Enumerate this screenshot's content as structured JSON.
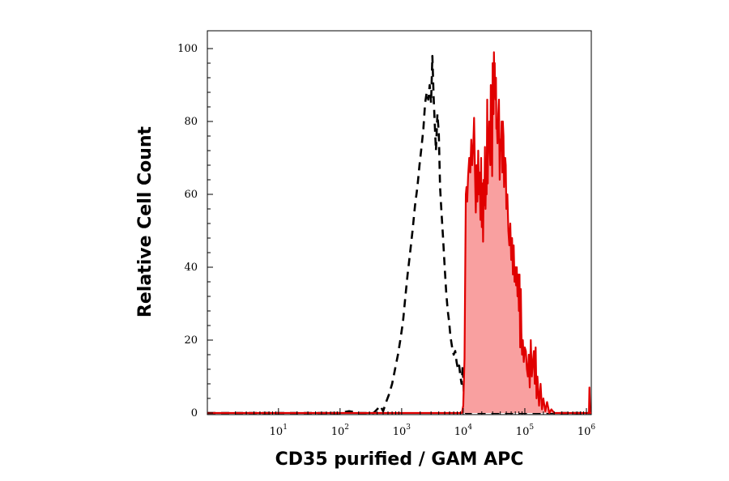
{
  "chart_data": {
    "type": "area",
    "title": "",
    "xlabel": "CD35 purified / GAM APC",
    "ylabel": "Relative Cell Count",
    "x_scale": "log",
    "xlim": [
      0.7,
      1200000
    ],
    "ylim": [
      0,
      100
    ],
    "grid": false,
    "legend": "none",
    "x_ticks": [
      {
        "base": "10",
        "exp": "1",
        "value": 10
      },
      {
        "base": "10",
        "exp": "2",
        "value": 100
      },
      {
        "base": "10",
        "exp": "3",
        "value": 1000
      },
      {
        "base": "10",
        "exp": "4",
        "value": 10000
      },
      {
        "base": "10",
        "exp": "5",
        "value": 100000
      },
      {
        "base": "10",
        "exp": "6",
        "value": 1000000
      }
    ],
    "y_ticks": [
      "0",
      "20",
      "40",
      "60",
      "80",
      "100"
    ],
    "series": [
      {
        "style": "dashed",
        "color": "#000000",
        "fill": "none",
        "x": [
          0.7,
          100,
          140,
          200,
          350,
          400,
          450,
          500,
          560,
          620,
          700,
          780,
          870,
          950,
          1050,
          1150,
          1250,
          1350,
          1500,
          1650,
          1800,
          1950,
          2100,
          2250,
          2400,
          2550,
          2700,
          2850,
          3000,
          3150,
          3300,
          3450,
          3600,
          3800,
          4000,
          4200,
          4400,
          4700,
          5000,
          5300,
          5600,
          5900,
          6200,
          6600,
          7000,
          7400,
          7800,
          8200,
          8600,
          9000,
          9400,
          9800,
          10200,
          10600,
          11000,
          12000,
          1200000
        ],
        "values": [
          0,
          0,
          0.5,
          0,
          0,
          1,
          2,
          0.5,
          3,
          5,
          8,
          12,
          16,
          20,
          25,
          32,
          38,
          43,
          50,
          57,
          62,
          68,
          73,
          78,
          85,
          88,
          86,
          90,
          85,
          98,
          87,
          79,
          72,
          82,
          77,
          62,
          56,
          48,
          40,
          33,
          28,
          25,
          21,
          18,
          16,
          17,
          14,
          12,
          13,
          10,
          8,
          13,
          6,
          4,
          0,
          0,
          0
        ]
      },
      {
        "style": "solid",
        "color": "#e00000",
        "fill": "#f9a0a0",
        "x": [
          0.7,
          9500,
          10000,
          10500,
          11000,
          11300,
          11600,
          12000,
          12500,
          13000,
          13500,
          14000,
          14500,
          15000,
          15500,
          16000,
          16500,
          17000,
          17500,
          18000,
          18500,
          19000,
          19500,
          20000,
          20500,
          21000,
          21500,
          22000,
          22500,
          23000,
          23500,
          24000,
          24500,
          25000,
          25500,
          26000,
          26500,
          27000,
          27500,
          28000,
          28500,
          29000,
          29500,
          30000,
          30500,
          31000,
          31500,
          32000,
          32500,
          33000,
          33500,
          34000,
          34500,
          35000,
          36000,
          37000,
          38000,
          39000,
          40000,
          41000,
          42000,
          43000,
          44000,
          45000,
          46000,
          47000,
          48000,
          49000,
          50000,
          52000,
          54000,
          56000,
          58000,
          60000,
          62000,
          64000,
          66000,
          68000,
          70000,
          72000,
          74000,
          76000,
          78000,
          80000,
          82000,
          84000,
          86000,
          88000,
          90000,
          93000,
          96000,
          100000,
          104000,
          108000,
          112000,
          116000,
          120000,
          125000,
          130000,
          135000,
          140000,
          145000,
          150000,
          155000,
          160000,
          170000,
          180000,
          190000,
          200000,
          215000,
          230000,
          250000,
          270000,
          300000,
          1000000,
          1100000,
          1120000,
          1150000,
          1200000
        ],
        "values": [
          0,
          0,
          2,
          15,
          60,
          62,
          58,
          65,
          70,
          66,
          75,
          68,
          73,
          81,
          66,
          55,
          68,
          58,
          72,
          60,
          66,
          53,
          70,
          51,
          63,
          47,
          64,
          57,
          73,
          56,
          66,
          60,
          86,
          63,
          78,
          73,
          80,
          72,
          68,
          90,
          78,
          89,
          65,
          96,
          84,
          82,
          99,
          92,
          96,
          88,
          86,
          92,
          78,
          80,
          74,
          82,
          86,
          64,
          75,
          72,
          80,
          66,
          80,
          76,
          62,
          70,
          70,
          68,
          56,
          60,
          50,
          46,
          52,
          42,
          48,
          38,
          46,
          36,
          40,
          35,
          40,
          32,
          38,
          28,
          38,
          18,
          34,
          22,
          16,
          20,
          14,
          18,
          17,
          12,
          10,
          16,
          7,
          20,
          10,
          14,
          17,
          8,
          18,
          4,
          10,
          2,
          8,
          1,
          4,
          0.5,
          3,
          0,
          1,
          0,
          0,
          0,
          7,
          0,
          0
        ]
      }
    ]
  }
}
